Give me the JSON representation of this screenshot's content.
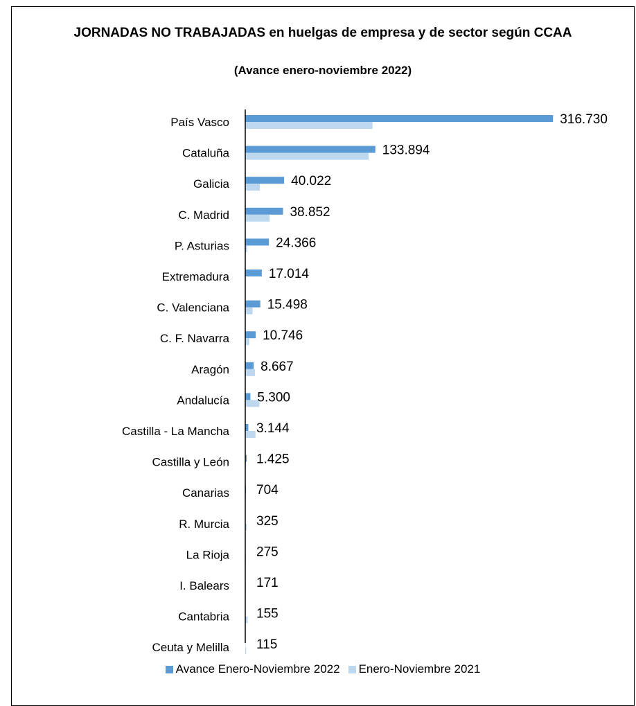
{
  "chart_data": {
    "type": "bar",
    "orientation": "horizontal",
    "title": "JORNADAS NO TRABAJADAS  en huelgas de empresa y de sector según CCAA",
    "subtitle": "(Avance enero-noviembre  2022)",
    "categories": [
      "País Vasco",
      "Cataluña",
      "Galicia",
      "C. Madrid",
      "P. Asturias",
      "Extremadura",
      "C. Valenciana",
      "C. F. Navarra",
      "Aragón",
      "Andalucía",
      "Castilla - La Mancha",
      "Castilla y León",
      "Canarias",
      "R. Murcia",
      "La Rioja",
      "I. Balears",
      "Cantabria",
      "Ceuta y Melilla"
    ],
    "series": [
      {
        "name": "Avance Enero-Noviembre 2022",
        "color": "#5b9bd5",
        "values": [
          316730,
          133894,
          40022,
          38852,
          24366,
          17014,
          15498,
          10746,
          8667,
          5300,
          3144,
          1425,
          704,
          325,
          275,
          171,
          155,
          115
        ],
        "labels": [
          "316.730",
          "133.894",
          "40.022",
          "38.852",
          "24.366",
          "17.014",
          "15.498",
          "10.746",
          "8.667",
          "5.300",
          "3.144",
          "1.425",
          "704",
          "325",
          "275",
          "171",
          "155",
          "115"
        ]
      },
      {
        "name": "Enero-Noviembre 2021",
        "color": "#bdd7ee",
        "values": [
          131000,
          127000,
          15000,
          25000,
          2000,
          0,
          7500,
          4000,
          10000,
          14500,
          10500,
          900,
          900,
          1600,
          700,
          500,
          2500,
          900
        ]
      }
    ],
    "xlim": [
      0,
      318000
    ],
    "grid": false,
    "legend": "bottom"
  }
}
